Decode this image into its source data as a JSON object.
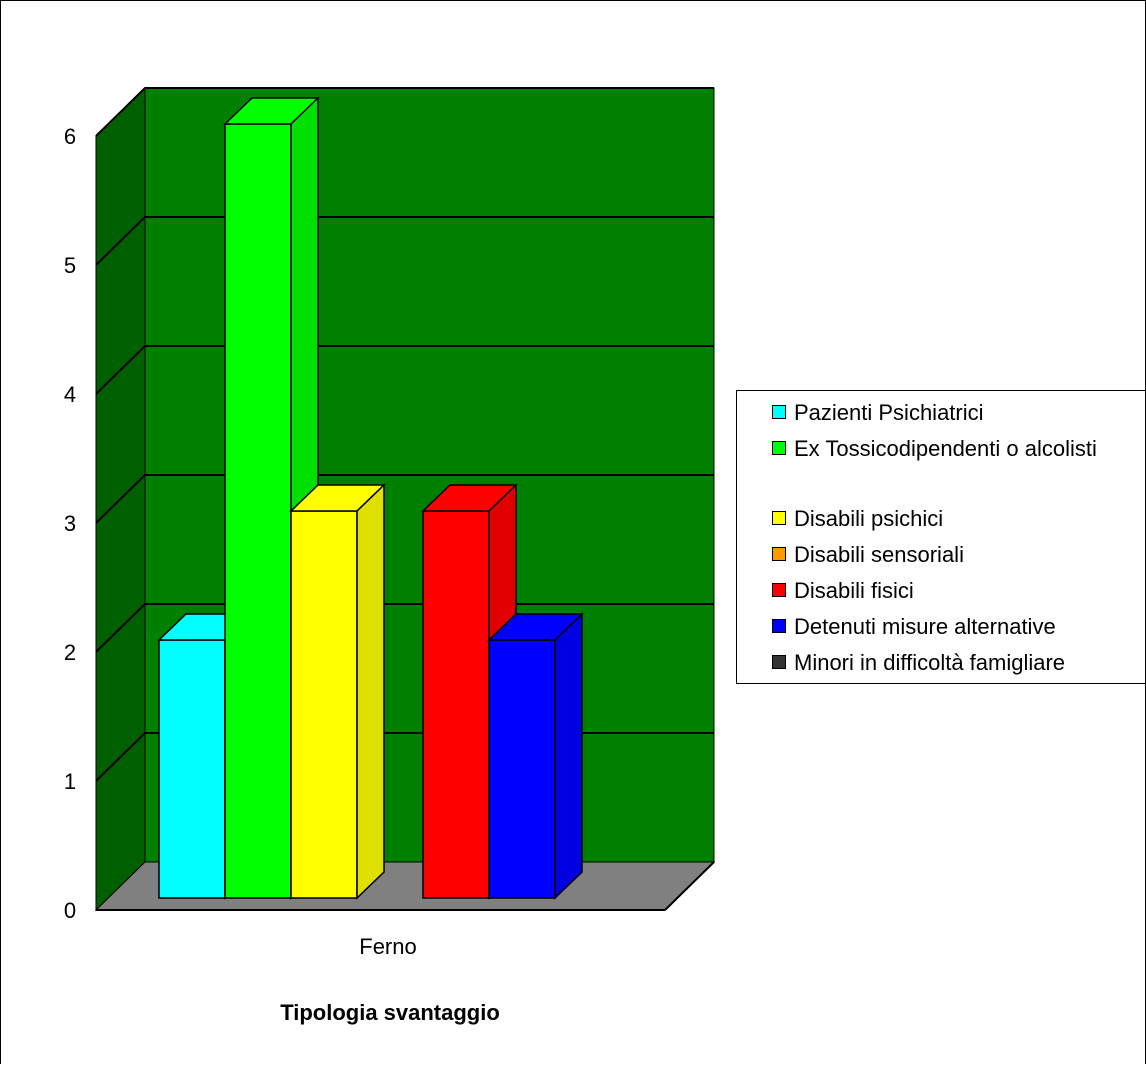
{
  "chart_data": {
    "type": "bar",
    "categories": [
      "Ferno"
    ],
    "xlabel": "Tipologia svantaggio",
    "ylabel": "",
    "ylim": [
      0,
      6
    ],
    "yticks": [
      "0",
      "1",
      "2",
      "3",
      "4",
      "5",
      "6"
    ],
    "three_d": true,
    "grid": true,
    "legend_position": "right",
    "wall_color": "#008000",
    "floor_color": "#808080",
    "series": [
      {
        "name": "Pazienti Psichiatrici",
        "values": [
          2
        ],
        "color": "#00ffff"
      },
      {
        "name": "Ex Tossicodipendenti o alcolisti",
        "values": [
          6
        ],
        "color": "#00ff00"
      },
      {
        "name": "Disabili psichici",
        "values": [
          3
        ],
        "color": "#ffff00"
      },
      {
        "name": "Disabili sensoriali",
        "values": [
          0
        ],
        "color": "#ff9900"
      },
      {
        "name": "Disabili fisici",
        "values": [
          3
        ],
        "color": "#ff0000"
      },
      {
        "name": "Detenuti misure alternative",
        "values": [
          2
        ],
        "color": "#0000ff"
      },
      {
        "name": "Minori in difficoltà famigliare",
        "values": [
          0
        ],
        "color": "#333333"
      }
    ]
  }
}
